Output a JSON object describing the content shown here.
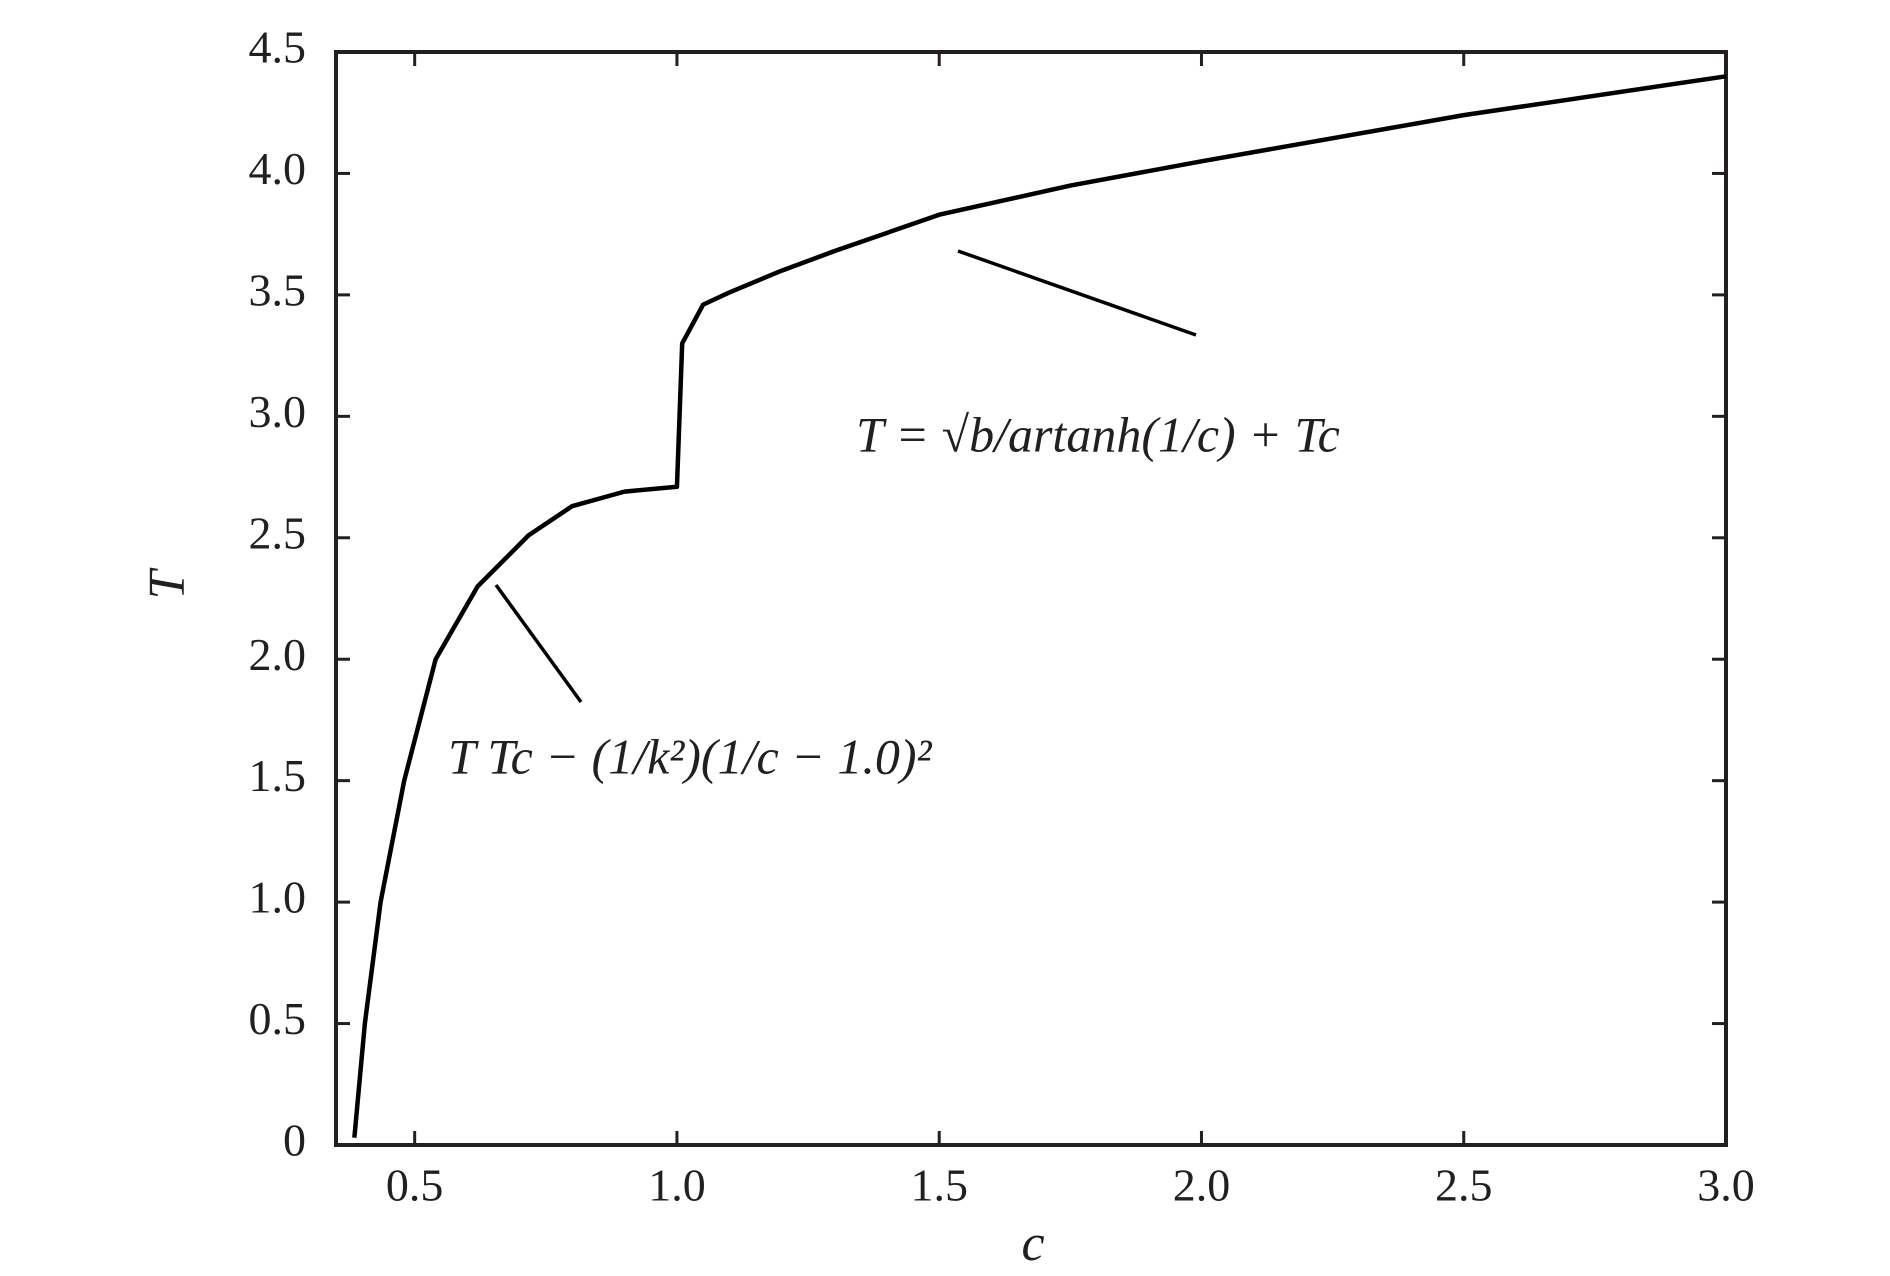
{
  "chart_data": {
    "type": "line",
    "x_label": "c",
    "y_label": "T",
    "x": [
      0.385,
      0.405,
      0.435,
      0.48,
      0.54,
      0.62,
      0.717,
      0.8,
      0.9,
      1.0,
      1.01,
      1.05,
      1.1,
      1.2,
      1.3,
      1.5,
      1.75,
      2.0,
      2.5,
      3.0
    ],
    "series": [
      {
        "color": "#000000",
        "values": [
          0.03,
          0.5,
          1.0,
          1.5,
          2.0,
          2.3,
          2.51,
          2.63,
          2.69,
          2.71,
          3.3,
          3.46,
          3.51,
          3.6,
          3.68,
          3.83,
          3.95,
          4.05,
          4.24,
          4.4
        ]
      }
    ],
    "xlim": [
      0.35,
      3.0
    ],
    "ylim": [
      0,
      4.5
    ],
    "xticks": [
      0.5,
      {
        "value": 1,
        "label": "1.0"
      },
      1.5,
      {
        "value": 2,
        "label": "2.0"
      },
      2.5,
      {
        "value": 3,
        "label": "3.0"
      }
    ],
    "yticks": [
      0,
      0.5,
      {
        "value": 1,
        "label": "1.0"
      },
      1.5,
      {
        "value": 2,
        "label": "2.0"
      },
      2.5,
      {
        "value": 3,
        "label": "3.0"
      },
      3.5,
      {
        "value": 4,
        "label": "4.0"
      },
      4.5
    ],
    "annotations": [
      "T = √b/artanh(1/c) + Tc",
      "T    Tc − (1/k²)(1/c − 1.0)²"
    ]
  }
}
